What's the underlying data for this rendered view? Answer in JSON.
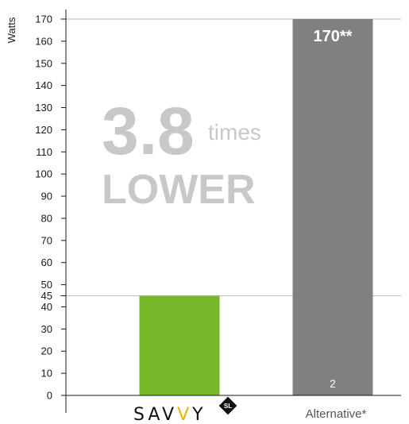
{
  "chart_data": {
    "type": "bar",
    "ylabel": "Watts",
    "ylim": [
      0,
      170
    ],
    "yticks": [
      0,
      10,
      20,
      30,
      40,
      45,
      50,
      60,
      70,
      80,
      90,
      100,
      110,
      120,
      130,
      140,
      150,
      160,
      170
    ],
    "categories": [
      "SAVVY",
      "Alternative*"
    ],
    "values": [
      45,
      170
    ],
    "colors": [
      "#76b82a",
      "#808080"
    ],
    "bar_top_labels": [
      "",
      "170**"
    ],
    "bar_bottom_labels": [
      "",
      "2"
    ],
    "reference_lines": [
      45,
      170
    ],
    "annotation": {
      "number": "3.8",
      "unit": "times",
      "word": "LOWER"
    },
    "grid": false
  },
  "logo": {
    "text": "SAVVY",
    "badge": "SL"
  }
}
